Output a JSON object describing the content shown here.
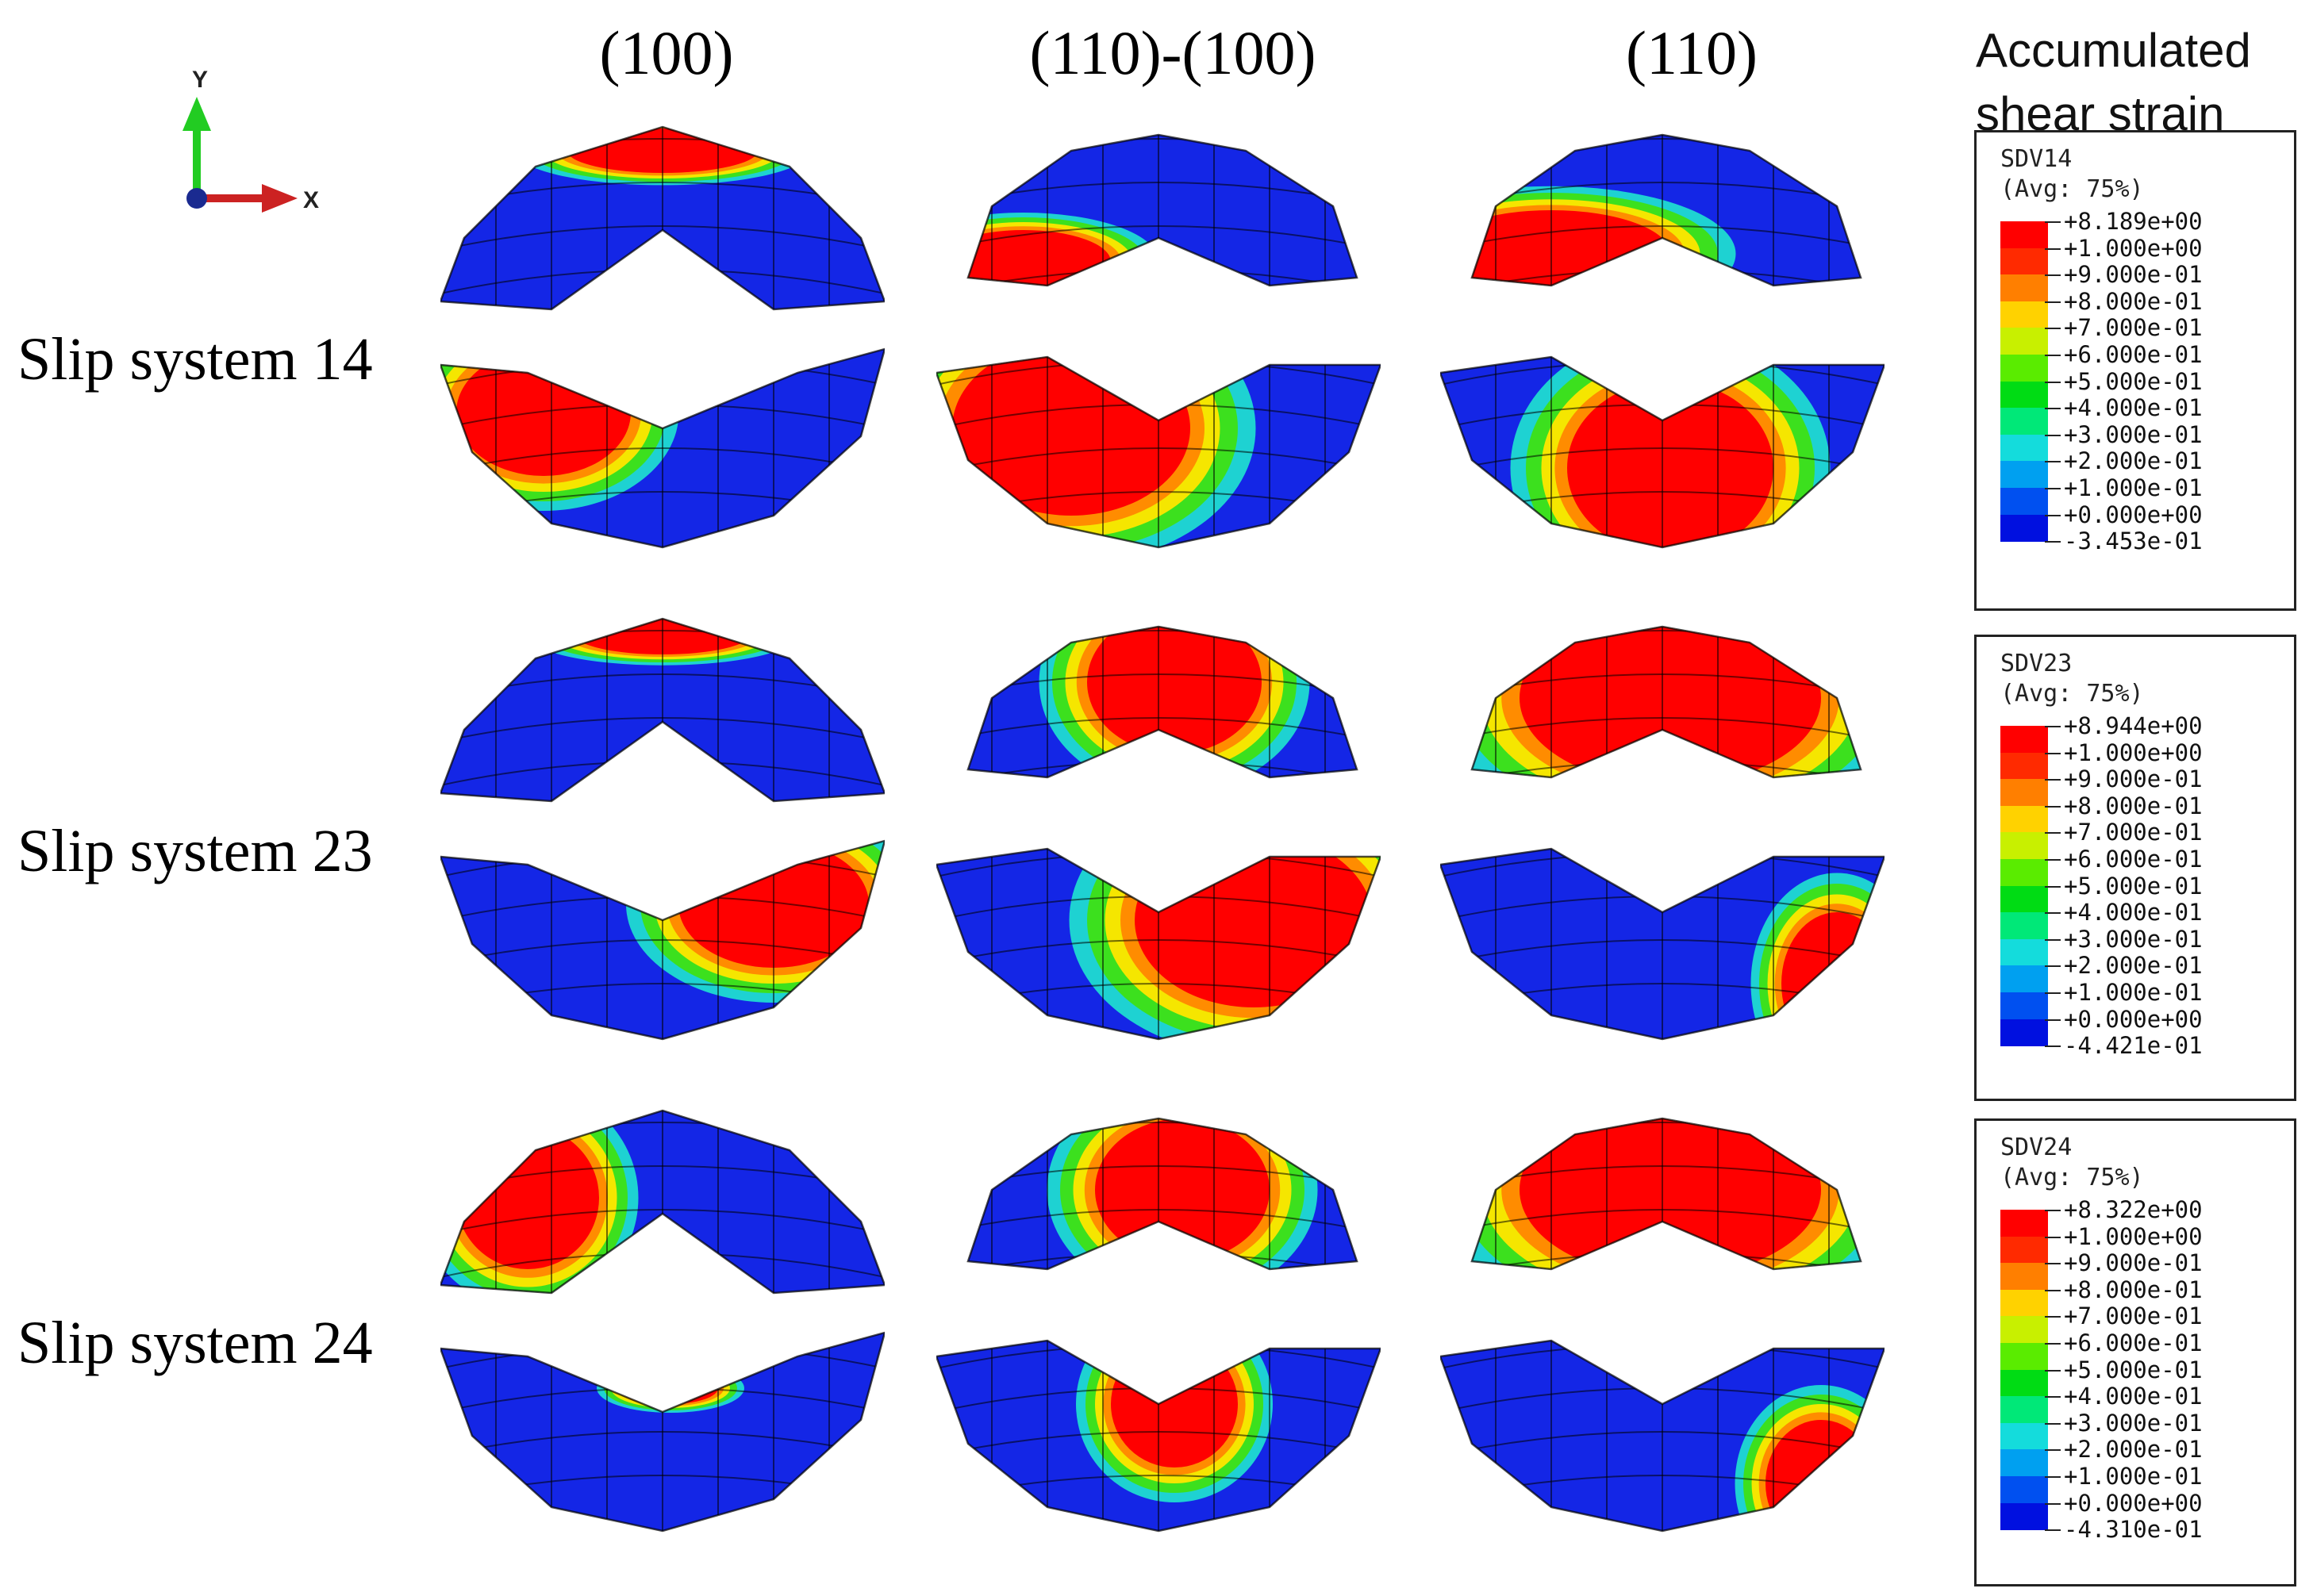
{
  "columns": [
    "(100)",
    "(110)-(100)",
    "(110)"
  ],
  "rows": [
    "Slip system 14",
    "Slip system 23",
    "Slip system 24"
  ],
  "axes": {
    "y_label": "Y",
    "x_label": "X"
  },
  "legend_title_line1": "Accumulated",
  "legend_title_line2": "shear strain",
  "legends": [
    {
      "name": "SDV14",
      "avg": "(Avg: 75%)",
      "labels": [
        "+8.189e+00",
        "+1.000e+00",
        "+9.000e-01",
        "+8.000e-01",
        "+7.000e-01",
        "+6.000e-01",
        "+5.000e-01",
        "+4.000e-01",
        "+3.000e-01",
        "+2.000e-01",
        "+1.000e-01",
        "+0.000e+00",
        "-3.453e-01"
      ]
    },
    {
      "name": "SDV23",
      "avg": "(Avg: 75%)",
      "labels": [
        "+8.944e+00",
        "+1.000e+00",
        "+9.000e-01",
        "+8.000e-01",
        "+7.000e-01",
        "+6.000e-01",
        "+5.000e-01",
        "+4.000e-01",
        "+3.000e-01",
        "+2.000e-01",
        "+1.000e-01",
        "+0.000e+00",
        "-4.421e-01"
      ]
    },
    {
      "name": "SDV24",
      "avg": "(Avg: 75%)",
      "labels": [
        "+8.322e+00",
        "+1.000e+00",
        "+9.000e-01",
        "+8.000e-01",
        "+7.000e-01",
        "+6.000e-01",
        "+5.000e-01",
        "+4.000e-01",
        "+3.000e-01",
        "+2.000e-01",
        "+1.000e-01",
        "+0.000e+00",
        "-4.310e-01"
      ]
    }
  ],
  "colors": {
    "scale": [
      "#ff0000",
      "#ff2a00",
      "#ff7f00",
      "#ffd200",
      "#c8f000",
      "#5aec00",
      "#00dc14",
      "#00e878",
      "#14dcdc",
      "#00a0f0",
      "#0050f0",
      "#0010e0"
    ],
    "mesh_blue": "#1426e6",
    "hot_red": "#ff0000",
    "orange": "#ff8c00",
    "yellow": "#f5e600",
    "green": "#3ce01e",
    "cyan": "#1ed2d2"
  }
}
